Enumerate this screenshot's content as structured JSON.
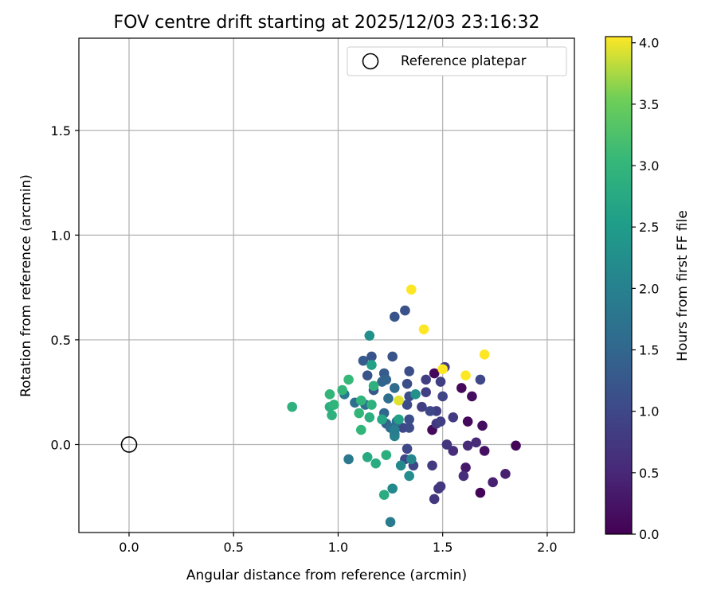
{
  "chart_data": {
    "type": "scatter",
    "title": "FOV centre drift starting at 2025/12/03 23:16:32",
    "xlabel": "Angular distance from reference (arcmin)",
    "ylabel": "Rotation from reference (arcmin)",
    "xlim": [
      -0.24,
      2.13
    ],
    "ylim": [
      -0.42,
      1.94
    ],
    "xticks": [
      0.0,
      0.5,
      1.0,
      1.5,
      2.0
    ],
    "xtick_labels": [
      "0.0",
      "0.5",
      "1.0",
      "1.5",
      "2.0"
    ],
    "yticks": [
      0.0,
      0.5,
      1.0,
      1.5
    ],
    "ytick_labels": [
      "0.0",
      "0.5",
      "1.0",
      "1.5"
    ],
    "grid": true,
    "legend": {
      "position": "top-right",
      "entries": [
        "Reference platepar"
      ]
    },
    "reference_point": {
      "x": 0.0,
      "y": 0.0,
      "label": "Reference platepar"
    },
    "colorbar": {
      "label": "Hours from first FF file",
      "range": [
        0.0,
        4.05
      ],
      "ticks": [
        0.0,
        0.5,
        1.0,
        1.5,
        2.0,
        2.5,
        3.0,
        3.5,
        4.0
      ],
      "tick_labels": [
        "0.0",
        "0.5",
        "1.0",
        "1.5",
        "2.0",
        "2.5",
        "3.0",
        "3.5",
        "4.0"
      ],
      "colormap": "viridis"
    },
    "points": [
      {
        "x": 1.85,
        "y": -0.005,
        "c": 0.05
      },
      {
        "x": 1.68,
        "y": -0.23,
        "c": 0.05
      },
      {
        "x": 1.62,
        "y": 0.11,
        "c": 0.1
      },
      {
        "x": 1.69,
        "y": 0.09,
        "c": 0.15
      },
      {
        "x": 1.59,
        "y": 0.27,
        "c": 0.1
      },
      {
        "x": 1.64,
        "y": 0.23,
        "c": 0.15
      },
      {
        "x": 1.46,
        "y": 0.34,
        "c": 0.1
      },
      {
        "x": 1.45,
        "y": 0.07,
        "c": 0.1
      },
      {
        "x": 1.7,
        "y": -0.03,
        "c": 0.2
      },
      {
        "x": 1.61,
        "y": -0.11,
        "c": 0.3
      },
      {
        "x": 1.8,
        "y": -0.14,
        "c": 0.4
      },
      {
        "x": 1.74,
        "y": -0.18,
        "c": 0.4
      },
      {
        "x": 1.62,
        "y": -0.005,
        "c": 0.55
      },
      {
        "x": 1.66,
        "y": 0.01,
        "c": 0.55
      },
      {
        "x": 1.6,
        "y": -0.15,
        "c": 0.6
      },
      {
        "x": 1.55,
        "y": -0.03,
        "c": 0.6
      },
      {
        "x": 1.52,
        "y": 0.0,
        "c": 0.7
      },
      {
        "x": 1.48,
        "y": -0.21,
        "c": 0.7
      },
      {
        "x": 1.49,
        "y": -0.2,
        "c": 0.75
      },
      {
        "x": 1.46,
        "y": -0.26,
        "c": 0.75
      },
      {
        "x": 1.45,
        "y": -0.1,
        "c": 0.8
      },
      {
        "x": 1.55,
        "y": 0.13,
        "c": 0.8
      },
      {
        "x": 1.47,
        "y": 0.1,
        "c": 0.75
      },
      {
        "x": 1.49,
        "y": 0.11,
        "c": 0.85
      },
      {
        "x": 1.47,
        "y": 0.16,
        "c": 0.85
      },
      {
        "x": 1.42,
        "y": 0.25,
        "c": 0.85
      },
      {
        "x": 1.4,
        "y": 0.18,
        "c": 0.85
      },
      {
        "x": 1.51,
        "y": 0.37,
        "c": 0.85
      },
      {
        "x": 1.49,
        "y": 0.3,
        "c": 0.85
      },
      {
        "x": 1.42,
        "y": 0.31,
        "c": 0.85
      },
      {
        "x": 1.5,
        "y": 0.23,
        "c": 0.95
      },
      {
        "x": 1.68,
        "y": 0.31,
        "c": 1.0
      },
      {
        "x": 1.44,
        "y": 0.16,
        "c": 1.0
      },
      {
        "x": 1.36,
        "y": -0.1,
        "c": 1.0
      },
      {
        "x": 1.32,
        "y": -0.07,
        "c": 1.0
      },
      {
        "x": 1.33,
        "y": -0.02,
        "c": 1.0
      },
      {
        "x": 1.31,
        "y": 0.08,
        "c": 1.0
      },
      {
        "x": 1.34,
        "y": 0.08,
        "c": 1.05
      },
      {
        "x": 1.34,
        "y": 0.12,
        "c": 1.1
      },
      {
        "x": 1.33,
        "y": 0.19,
        "c": 1.05
      },
      {
        "x": 1.34,
        "y": 0.23,
        "c": 1.1
      },
      {
        "x": 1.33,
        "y": 0.29,
        "c": 1.1
      },
      {
        "x": 1.34,
        "y": 0.35,
        "c": 1.1
      },
      {
        "x": 1.32,
        "y": 0.64,
        "c": 1.15
      },
      {
        "x": 1.27,
        "y": 0.61,
        "c": 1.2
      },
      {
        "x": 1.26,
        "y": 0.42,
        "c": 1.2
      },
      {
        "x": 1.16,
        "y": 0.42,
        "c": 1.2
      },
      {
        "x": 1.14,
        "y": 0.33,
        "c": 1.2
      },
      {
        "x": 1.17,
        "y": 0.26,
        "c": 1.25
      },
      {
        "x": 1.12,
        "y": 0.4,
        "c": 1.3
      },
      {
        "x": 1.22,
        "y": 0.34,
        "c": 1.3
      },
      {
        "x": 1.23,
        "y": 0.31,
        "c": 1.45
      },
      {
        "x": 1.21,
        "y": 0.3,
        "c": 1.45
      },
      {
        "x": 1.27,
        "y": 0.27,
        "c": 1.6
      },
      {
        "x": 1.24,
        "y": 0.22,
        "c": 1.65
      },
      {
        "x": 1.22,
        "y": 0.15,
        "c": 1.5
      },
      {
        "x": 1.23,
        "y": 0.1,
        "c": 1.4
      },
      {
        "x": 1.25,
        "y": 0.08,
        "c": 1.6
      },
      {
        "x": 1.27,
        "y": 0.05,
        "c": 1.7
      },
      {
        "x": 1.28,
        "y": 0.11,
        "c": 1.7
      },
      {
        "x": 1.25,
        "y": -0.37,
        "c": 1.9
      },
      {
        "x": 1.26,
        "y": -0.21,
        "c": 2.15
      },
      {
        "x": 1.3,
        "y": -0.1,
        "c": 2.15
      },
      {
        "x": 1.34,
        "y": -0.15,
        "c": 2.25
      },
      {
        "x": 1.35,
        "y": -0.07,
        "c": 2.1
      },
      {
        "x": 1.27,
        "y": 0.04,
        "c": 2.0
      },
      {
        "x": 1.27,
        "y": 0.07,
        "c": 1.95
      },
      {
        "x": 1.03,
        "y": 0.24,
        "c": 1.85
      },
      {
        "x": 1.05,
        "y": -0.07,
        "c": 1.85
      },
      {
        "x": 1.08,
        "y": 0.2,
        "c": 1.65
      },
      {
        "x": 1.13,
        "y": 0.19,
        "c": 1.7
      },
      {
        "x": 1.37,
        "y": 0.24,
        "c": 2.3
      },
      {
        "x": 1.15,
        "y": 0.52,
        "c": 2.3
      },
      {
        "x": 1.16,
        "y": 0.38,
        "c": 2.6
      },
      {
        "x": 1.29,
        "y": 0.12,
        "c": 2.6
      },
      {
        "x": 1.21,
        "y": 0.12,
        "c": 2.7
      },
      {
        "x": 1.14,
        "y": -0.06,
        "c": 2.75
      },
      {
        "x": 1.18,
        "y": -0.09,
        "c": 2.8
      },
      {
        "x": 1.22,
        "y": -0.24,
        "c": 2.8
      },
      {
        "x": 1.23,
        "y": -0.05,
        "c": 2.85
      },
      {
        "x": 1.15,
        "y": 0.13,
        "c": 2.85
      },
      {
        "x": 1.16,
        "y": 0.19,
        "c": 2.9
      },
      {
        "x": 1.17,
        "y": 0.28,
        "c": 2.9
      },
      {
        "x": 1.11,
        "y": 0.21,
        "c": 2.95
      },
      {
        "x": 1.1,
        "y": 0.15,
        "c": 3.0
      },
      {
        "x": 1.11,
        "y": 0.07,
        "c": 3.0
      },
      {
        "x": 0.97,
        "y": 0.14,
        "c": 2.9
      },
      {
        "x": 0.96,
        "y": 0.18,
        "c": 2.85
      },
      {
        "x": 0.98,
        "y": 0.19,
        "c": 2.95
      },
      {
        "x": 0.96,
        "y": 0.24,
        "c": 3.0
      },
      {
        "x": 1.02,
        "y": 0.26,
        "c": 3.0
      },
      {
        "x": 1.05,
        "y": 0.31,
        "c": 3.05
      },
      {
        "x": 0.78,
        "y": 0.18,
        "c": 2.9
      },
      {
        "x": 1.35,
        "y": 0.74,
        "c": 4.05
      },
      {
        "x": 1.41,
        "y": 0.55,
        "c": 4.05
      },
      {
        "x": 1.7,
        "y": 0.43,
        "c": 4.05
      },
      {
        "x": 1.5,
        "y": 0.36,
        "c": 4.05
      },
      {
        "x": 1.61,
        "y": 0.33,
        "c": 4.05
      },
      {
        "x": 1.29,
        "y": 0.21,
        "c": 3.95
      }
    ]
  }
}
